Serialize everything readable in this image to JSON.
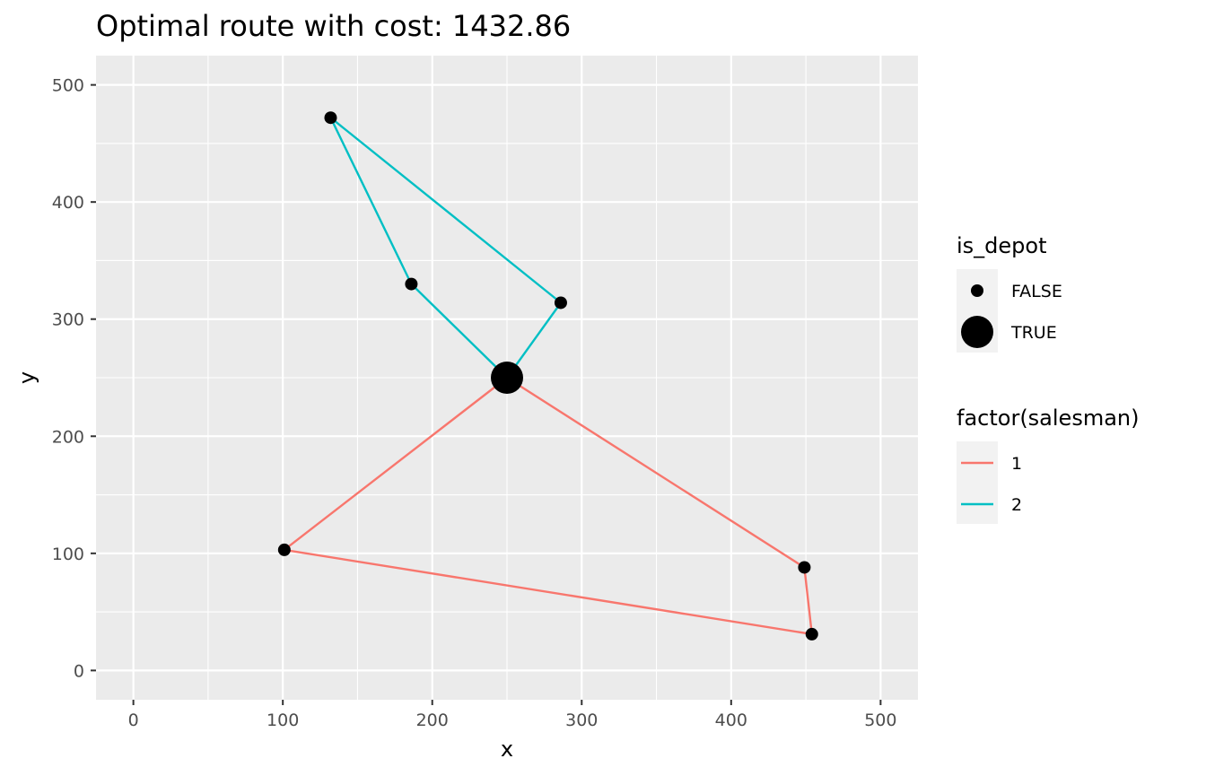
{
  "chart_data": {
    "type": "line",
    "title": "Optimal route with cost: 1432.86",
    "xlabel": "x",
    "ylabel": "y",
    "xlim": [
      -25,
      525
    ],
    "ylim": [
      -25,
      525
    ],
    "x_ticks": [
      0,
      100,
      200,
      300,
      400,
      500
    ],
    "y_ticks": [
      0,
      100,
      200,
      300,
      400,
      500
    ],
    "grid": true,
    "legend_placement": "right",
    "colors": {
      "panel_bg": "#ebebeb",
      "grid": "#ffffff",
      "points": "#000000"
    },
    "points": [
      {
        "x": 250,
        "y": 250,
        "is_depot": "TRUE"
      },
      {
        "x": 132,
        "y": 472,
        "is_depot": "FALSE"
      },
      {
        "x": 186,
        "y": 330,
        "is_depot": "FALSE"
      },
      {
        "x": 286,
        "y": 314,
        "is_depot": "FALSE"
      },
      {
        "x": 101,
        "y": 103,
        "is_depot": "FALSE"
      },
      {
        "x": 449,
        "y": 88,
        "is_depot": "FALSE"
      },
      {
        "x": 454,
        "y": 31,
        "is_depot": "FALSE"
      }
    ],
    "series": [
      {
        "name": "1",
        "color": "#f8766d",
        "route": [
          [
            250,
            250
          ],
          [
            101,
            103
          ],
          [
            454,
            31
          ],
          [
            449,
            88
          ],
          [
            250,
            250
          ]
        ]
      },
      {
        "name": "2",
        "color": "#00bfc4",
        "route": [
          [
            250,
            250
          ],
          [
            186,
            330
          ],
          [
            132,
            472
          ],
          [
            286,
            314
          ],
          [
            250,
            250
          ]
        ]
      }
    ],
    "legends": {
      "size": {
        "title": "is_depot",
        "entries": [
          {
            "label": "FALSE"
          },
          {
            "label": "TRUE"
          }
        ]
      },
      "color": {
        "title": "factor(salesman)",
        "entries": [
          {
            "label": "1",
            "color": "#f8766d"
          },
          {
            "label": "2",
            "color": "#00bfc4"
          }
        ]
      }
    }
  }
}
